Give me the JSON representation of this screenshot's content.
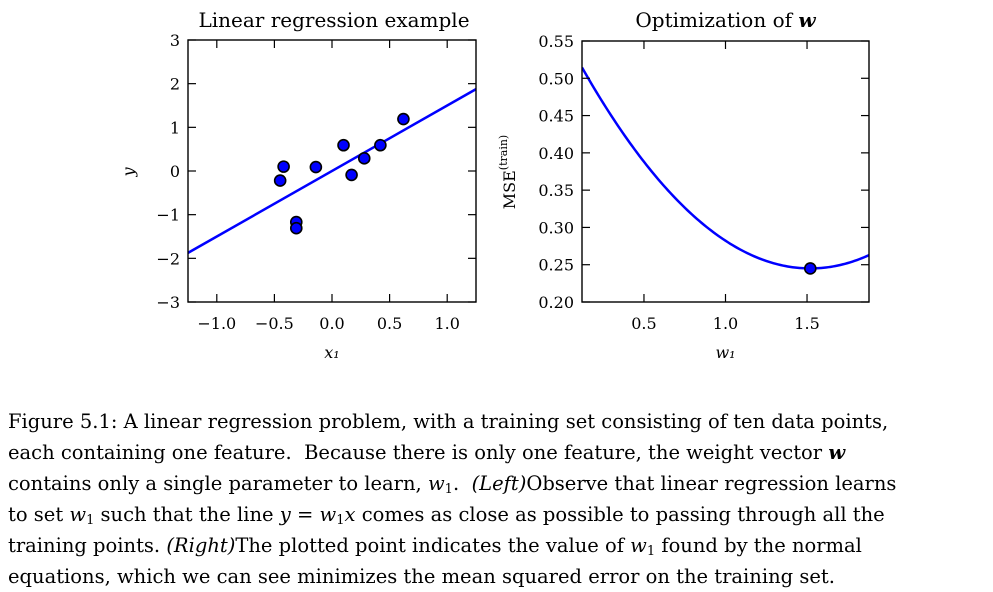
{
  "chart_data": [
    {
      "type": "scatter",
      "title": "Linear regression example",
      "xlabel": "x₁",
      "ylabel": "y",
      "xlim": [
        -1.25,
        1.25
      ],
      "ylim": [
        -3,
        3
      ],
      "xticks": [
        -1.0,
        -0.5,
        0.0,
        0.5,
        1.0
      ],
      "xtick_labels": [
        "−1.0",
        "−0.5",
        "0.0",
        "0.5",
        "1.0"
      ],
      "yticks": [
        -3,
        -2,
        -1,
        0,
        1,
        2,
        3
      ],
      "ytick_labels": [
        "−3",
        "−2",
        "−1",
        "0",
        "1",
        "2",
        "3"
      ],
      "points": [
        {
          "x": -0.45,
          "y": -0.22
        },
        {
          "x": -0.42,
          "y": 0.1
        },
        {
          "x": -0.31,
          "y": -1.17
        },
        {
          "x": -0.31,
          "y": -1.31
        },
        {
          "x": -0.14,
          "y": 0.09
        },
        {
          "x": 0.1,
          "y": 0.59
        },
        {
          "x": 0.17,
          "y": -0.09
        },
        {
          "x": 0.28,
          "y": 0.29
        },
        {
          "x": 0.42,
          "y": 0.59
        },
        {
          "x": 0.62,
          "y": 1.19
        }
      ],
      "fit_line": {
        "slope": 1.5,
        "intercept": 0.0
      },
      "line_color": "#0000ff",
      "point_color": "#0000ff"
    },
    {
      "type": "line",
      "title": "Optimization of ",
      "title_symbol": "w",
      "xlabel": "w₁",
      "ylabel": "MSE",
      "ylabel_superscript": "(train)",
      "xlim": [
        0.12,
        1.88
      ],
      "ylim": [
        0.2,
        0.55
      ],
      "xticks": [
        0.5,
        1.0,
        1.5
      ],
      "xtick_labels": [
        "0.5",
        "1.0",
        "1.5"
      ],
      "yticks": [
        0.2,
        0.25,
        0.3,
        0.35,
        0.4,
        0.45,
        0.5,
        0.55
      ],
      "ytick_labels": [
        "0.20",
        "0.25",
        "0.30",
        "0.35",
        "0.40",
        "0.45",
        "0.50",
        "0.55"
      ],
      "curve": {
        "vertex_x": 1.52,
        "vertex_y": 0.245,
        "curvature": 0.1375
      },
      "highlight_point": {
        "x": 1.52,
        "y": 0.245
      },
      "line_color": "#0000ff",
      "point_color": "#0000ff"
    }
  ],
  "caption": {
    "lines": [
      [
        {
          "t": "Figure 5.1: A linear regression problem, with a training set consisting of ten data points,"
        }
      ],
      [
        {
          "t": "each containing one feature.  Because there is only one feature, the weight vector "
        },
        {
          "t": "w",
          "s": "b"
        }
      ],
      [
        {
          "t": "contains only a single parameter to learn, "
        },
        {
          "t": "w",
          "s": "i"
        },
        {
          "t": "1",
          "s": "sub"
        },
        {
          "t": ".  "
        },
        {
          "t": "(Left)",
          "s": "i"
        },
        {
          "t": "Observe that linear regression learns"
        }
      ],
      [
        {
          "t": "to set "
        },
        {
          "t": "w",
          "s": "i"
        },
        {
          "t": "1",
          "s": "sub"
        },
        {
          "t": " such that the line "
        },
        {
          "t": "y",
          "s": "i"
        },
        {
          "t": " = "
        },
        {
          "t": "w",
          "s": "i"
        },
        {
          "t": "1",
          "s": "sub"
        },
        {
          "t": "x",
          "s": "i"
        },
        {
          "t": " comes as close as possible to passing through all the"
        }
      ],
      [
        {
          "t": "training points. "
        },
        {
          "t": "(Right)",
          "s": "i"
        },
        {
          "t": "The plotted point indicates the value of "
        },
        {
          "t": "w",
          "s": "i"
        },
        {
          "t": "1",
          "s": "sub"
        },
        {
          "t": " found by the normal"
        }
      ],
      [
        {
          "t": "equations, which we can see minimizes the mean squared error on the training set."
        }
      ]
    ]
  }
}
